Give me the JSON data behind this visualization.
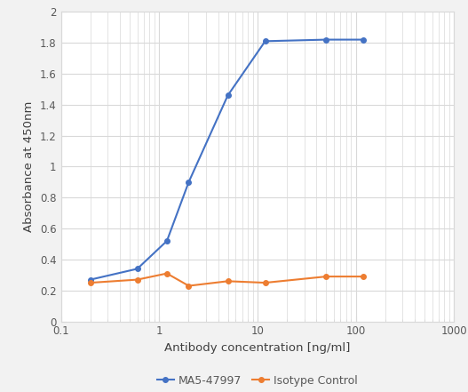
{
  "ma5_x": [
    0.2,
    0.6,
    1.2,
    2.0,
    5.0,
    12.0,
    50.0,
    120.0
  ],
  "ma5_y": [
    0.27,
    0.34,
    0.52,
    0.9,
    1.46,
    1.81,
    1.82,
    1.82
  ],
  "iso_x": [
    0.2,
    0.6,
    1.2,
    2.0,
    5.0,
    12.0,
    50.0,
    120.0
  ],
  "iso_y": [
    0.25,
    0.27,
    0.31,
    0.23,
    0.26,
    0.25,
    0.29,
    0.29
  ],
  "ma5_color": "#4472C4",
  "iso_color": "#ED7D31",
  "ma5_label": "MA5-47997",
  "iso_label": "Isotype Control",
  "xlabel": "Antibody concentration [ng/ml]",
  "ylabel": "Absorbance at 450nm",
  "xlim": [
    0.1,
    1000
  ],
  "ylim": [
    0,
    2.0
  ],
  "yticks": [
    0,
    0.2,
    0.4,
    0.6,
    0.8,
    1.0,
    1.2,
    1.4,
    1.6,
    1.8,
    2.0
  ],
  "ytick_labels": [
    "0",
    "0.2",
    "0.4",
    "0.6",
    "0.8",
    "1",
    "1.2",
    "1.4",
    "1.6",
    "1.8",
    "2"
  ],
  "xtick_positions": [
    0.1,
    1,
    10,
    100,
    1000
  ],
  "xtick_labels": [
    "0.1",
    "1",
    "10",
    "100",
    "1000"
  ],
  "outer_bg": "#F2F2F2",
  "plot_bg": "#FFFFFF",
  "grid_color": "#D9D9D9",
  "border_color": "#D9D9D9",
  "tick_label_color": "#595959",
  "axis_label_color": "#404040",
  "marker": "o",
  "markersize": 4,
  "linewidth": 1.5,
  "legend_fontsize": 9,
  "axis_label_fontsize": 9.5,
  "tick_label_fontsize": 8.5
}
